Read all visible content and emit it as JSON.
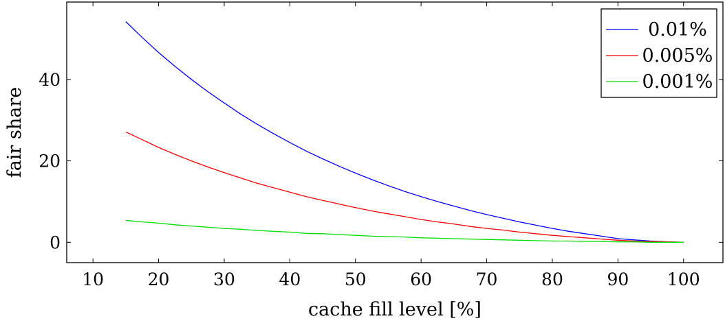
{
  "chart_data": {
    "type": "line",
    "xlabel": "cache fill level [%]",
    "ylabel": "fair share",
    "xlim": [
      6,
      106
    ],
    "ylim": [
      -5,
      59
    ],
    "xticks": [
      10,
      20,
      30,
      40,
      50,
      60,
      70,
      80,
      90,
      100
    ],
    "yticks": [
      0,
      20,
      40
    ],
    "grid": false,
    "legend_position": "top-right",
    "x": [
      15,
      17.5,
      20,
      22.5,
      25,
      27.5,
      30,
      32.5,
      35,
      37.5,
      40,
      42.5,
      45,
      47.5,
      50,
      52.5,
      55,
      57.5,
      60,
      62.5,
      65,
      67.5,
      70,
      72.5,
      75,
      77.5,
      80,
      82.5,
      85,
      87.5,
      90,
      92.5,
      95,
      97.5,
      100
    ],
    "series": [
      {
        "name": "0.01%",
        "color": "#0000ff",
        "values": [
          54.2,
          50.3,
          46.6,
          43.2,
          40.0,
          37.0,
          34.2,
          31.5,
          29.0,
          26.7,
          24.5,
          22.4,
          20.5,
          18.7,
          17.0,
          15.4,
          13.9,
          12.5,
          11.2,
          10.0,
          8.9,
          7.8,
          6.8,
          5.9,
          5.0,
          4.2,
          3.4,
          2.7,
          2.1,
          1.5,
          0.9,
          0.6,
          0.3,
          0.1,
          0.0
        ]
      },
      {
        "name": "0.005%",
        "color": "#ff0000",
        "values": [
          27.1,
          25.2,
          23.3,
          21.6,
          20.0,
          18.5,
          17.1,
          15.8,
          14.5,
          13.4,
          12.3,
          11.2,
          10.3,
          9.4,
          8.5,
          7.7,
          7.0,
          6.3,
          5.6,
          5.0,
          4.5,
          3.9,
          3.4,
          3.0,
          2.5,
          2.1,
          1.7,
          1.4,
          1.1,
          0.8,
          0.5,
          0.3,
          0.2,
          0.1,
          0.0
        ]
      },
      {
        "name": "0.001%",
        "color": "#00dd00",
        "values": [
          5.4,
          5.0,
          4.7,
          4.3,
          4.0,
          3.7,
          3.4,
          3.2,
          2.9,
          2.7,
          2.5,
          2.2,
          2.1,
          1.9,
          1.7,
          1.5,
          1.4,
          1.3,
          1.1,
          1.0,
          0.9,
          0.8,
          0.7,
          0.6,
          0.5,
          0.4,
          0.3,
          0.3,
          0.2,
          0.2,
          0.1,
          0.1,
          0.0,
          0.0,
          0.0
        ]
      }
    ]
  }
}
